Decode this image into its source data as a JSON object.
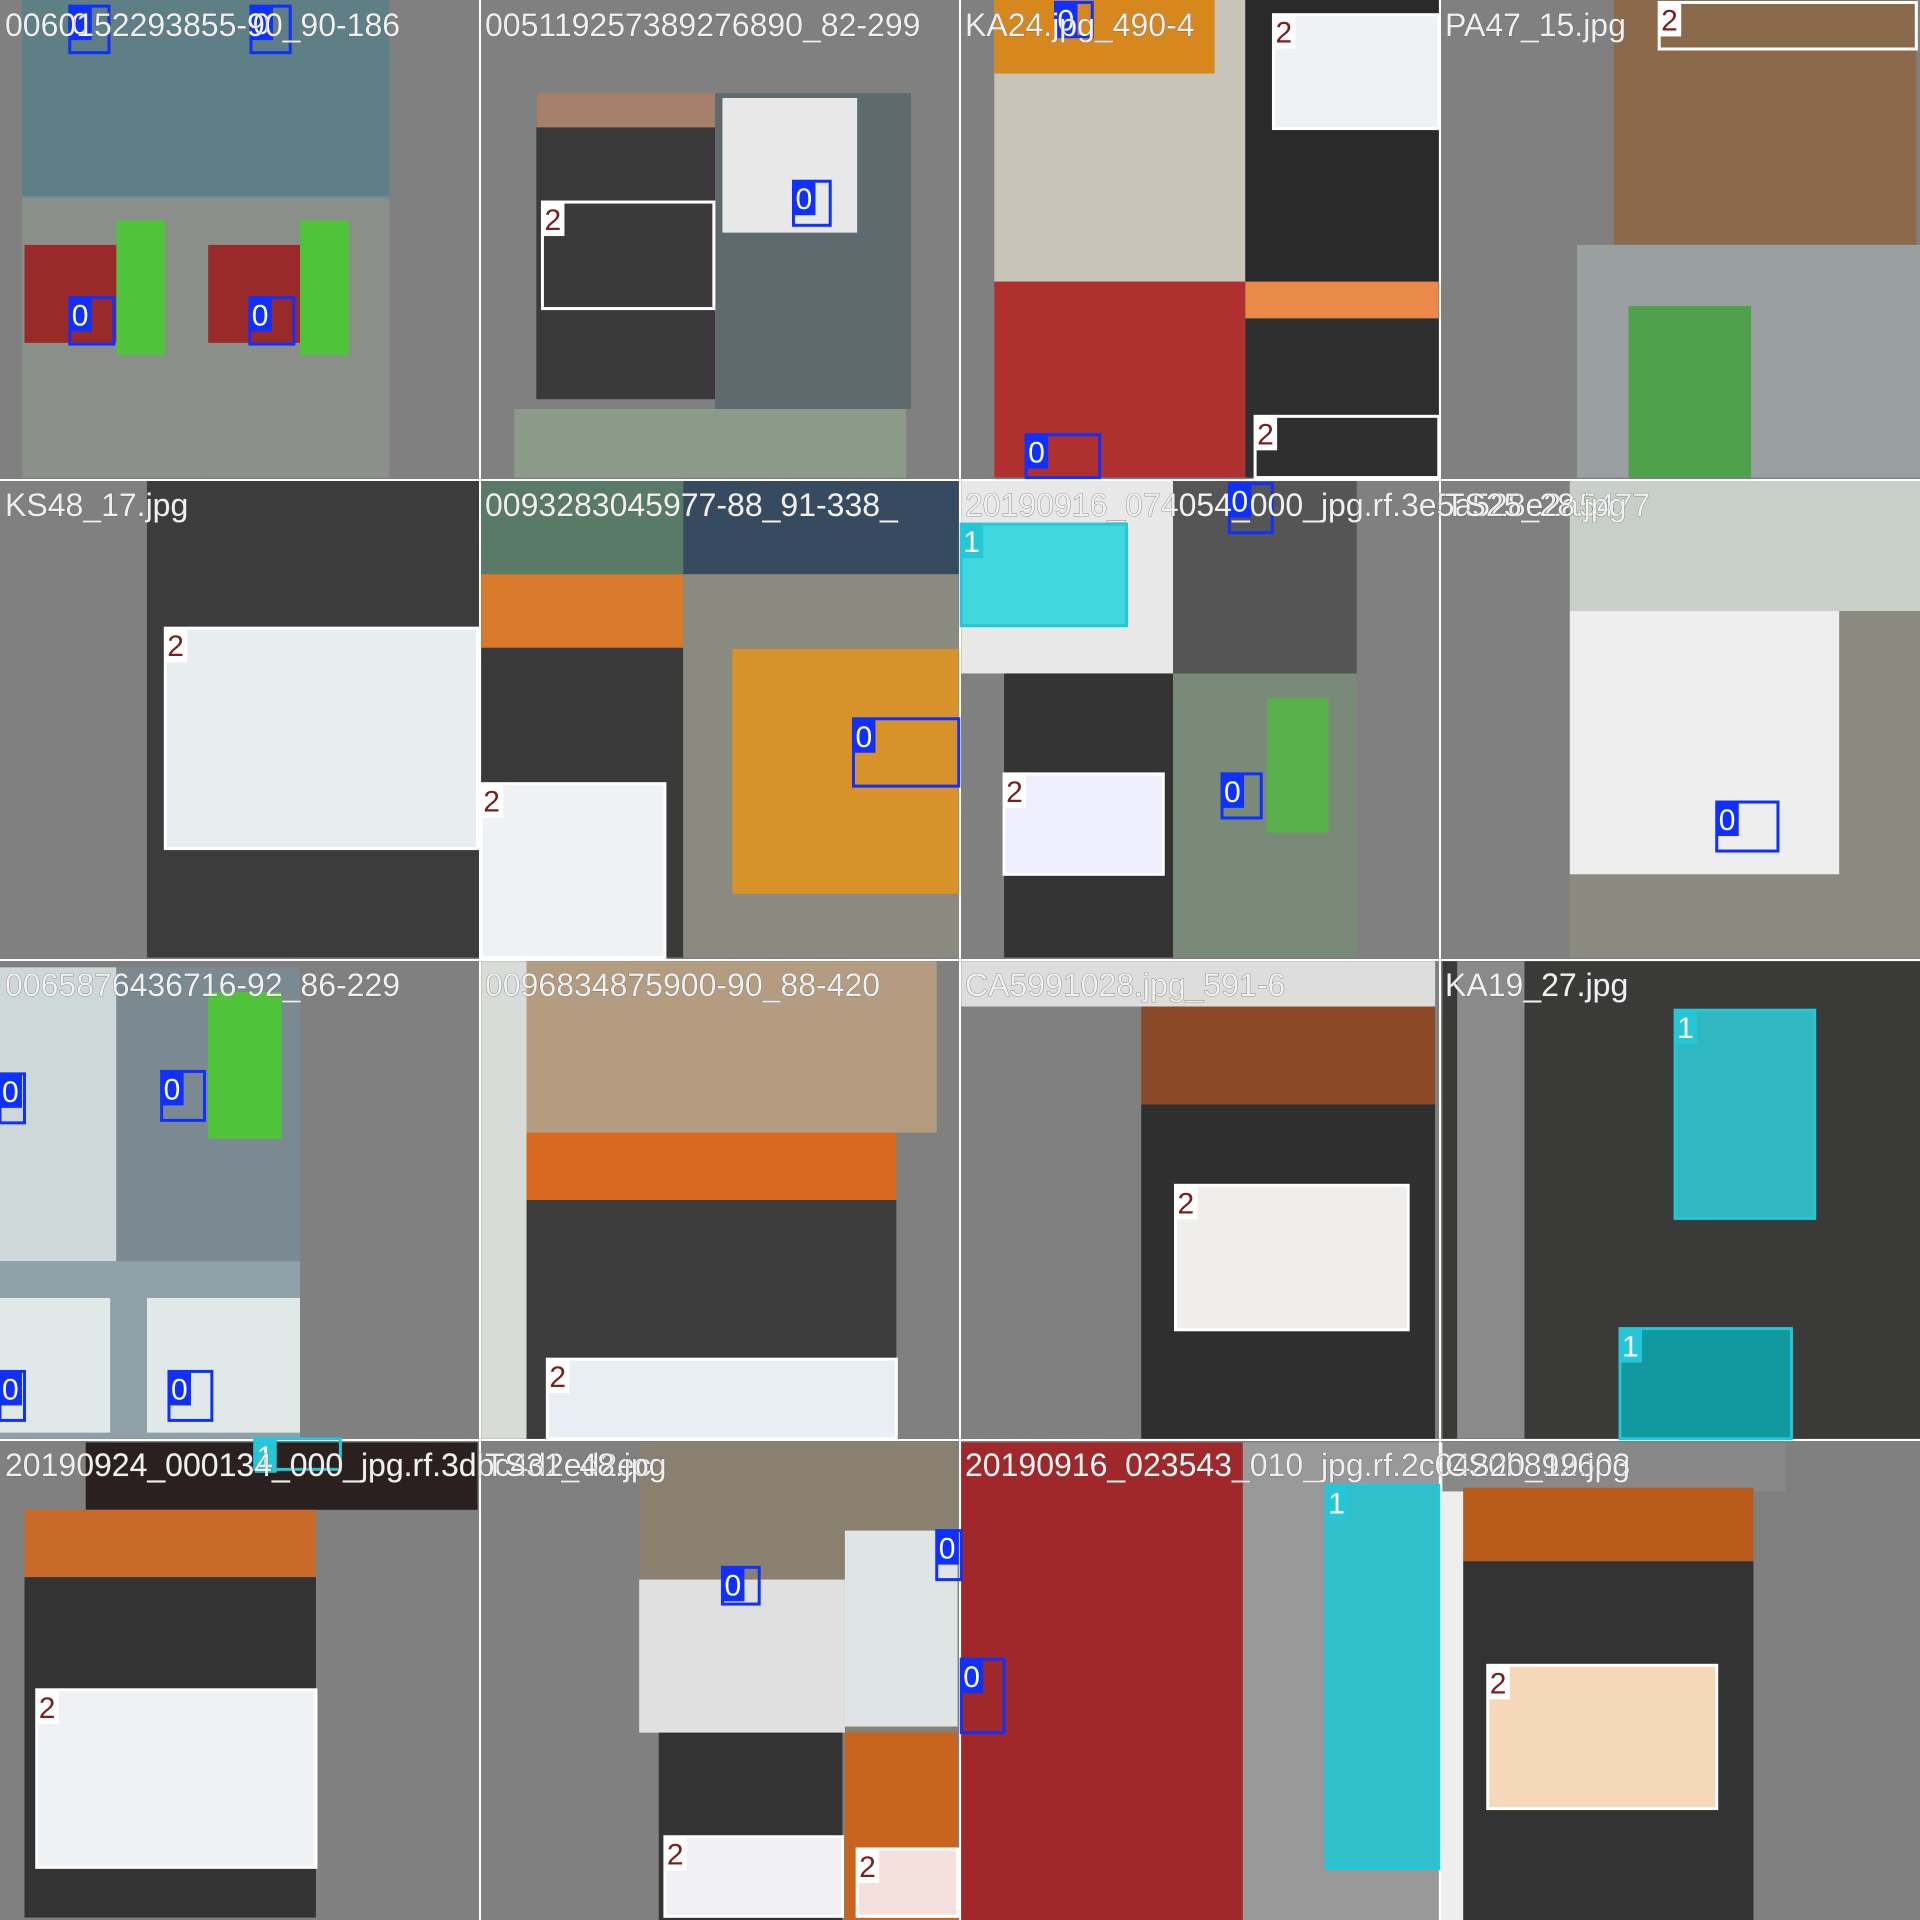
{
  "tiles": [
    {
      "captions": [
        "0060152293855-90_90-186"
      ],
      "boxes": [
        "0",
        "0",
        "0",
        "0"
      ]
    },
    {
      "captions": [
        "005119257389276890_82-299"
      ],
      "boxes": [
        "2",
        "0"
      ]
    },
    {
      "captions": [
        "KA24.jpg_490-4"
      ],
      "boxes": [
        "0",
        "2",
        "0",
        "2"
      ]
    },
    {
      "captions": [
        "PA47_15.jpg"
      ],
      "boxes": [
        "2"
      ]
    },
    {
      "captions": [
        "KS48_17.jpg"
      ],
      "boxes": [
        "2"
      ]
    },
    {
      "captions": [
        "0093283045977-88_91-338_"
      ],
      "boxes": [
        "2",
        "0"
      ]
    },
    {
      "captions": [
        "20190916_074054_000_jpg.rf.3e5a528e2a5477"
      ],
      "boxes": [
        "1",
        "0",
        "2",
        "0"
      ]
    },
    {
      "captions": [
        "TS25_28.jpg"
      ],
      "boxes": [
        "0"
      ]
    },
    {
      "captions": [
        "0065876436716-92_86-229"
      ],
      "boxes": [
        "0",
        "0",
        "0",
        "0",
        "1"
      ]
    },
    {
      "captions": [
        "0096834875900-90_88-420"
      ],
      "boxes": [
        "2"
      ]
    },
    {
      "captions": [
        "CA5991028.jpg_591-6"
      ],
      "boxes": [
        "2"
      ]
    },
    {
      "captions": [
        "KA19_27.jpg"
      ],
      "boxes": [
        "1",
        "1"
      ]
    },
    {
      "captions": [
        "20190924_000134_000_jpg.rf.3dbc4d2ed2ec"
      ],
      "boxes": [
        "2"
      ]
    },
    {
      "captions": [
        "TS31_48.jpg"
      ],
      "boxes": [
        "0",
        "0",
        "0",
        "2",
        "2"
      ]
    },
    {
      "captions": [
        "20190916_023543_010_jpg.rf.2c0420b892603"
      ],
      "boxes": [
        "1"
      ]
    },
    {
      "captions": [
        "CS20_19.jpg"
      ],
      "boxes": [
        "2"
      ]
    }
  ]
}
